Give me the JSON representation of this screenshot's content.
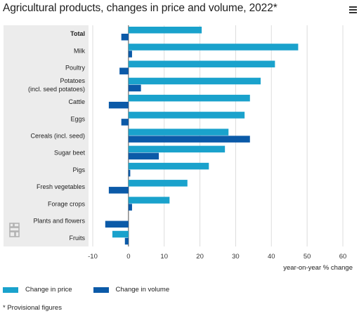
{
  "header": {
    "title": "Agricultural products, changes in price and volume, 2022*"
  },
  "menu": {
    "icon": "hamburger-menu-icon"
  },
  "logo": {
    "icon": "cbs-logo-icon"
  },
  "colors": {
    "price": "#1aa2cc",
    "volume": "#0b5aa8",
    "panel": "#ececec",
    "grid": "#dcdcdc"
  },
  "chart_data": {
    "type": "bar",
    "orientation": "horizontal",
    "title": "Agricultural products, changes in price and volume, 2022*",
    "categories": [
      "Total",
      "Milk",
      "Poultry",
      "Potatoes (incl. seed potatoes)",
      "Cattle",
      "Eggs",
      "Cereals (incl. seed)",
      "Sugar beet",
      "Pigs",
      "Fresh vegetables",
      "Forage crops",
      "Plants and flowers",
      "Fruits"
    ],
    "series": [
      {
        "name": "Change in price",
        "values": [
          20.5,
          47.5,
          41,
          37,
          34,
          32.5,
          28,
          27,
          22.5,
          16.5,
          11.5,
          0,
          -4.5
        ]
      },
      {
        "name": "Change in volume",
        "values": [
          -2,
          1,
          -2.5,
          3.5,
          -5.5,
          -2,
          34,
          8.5,
          0.5,
          -5.5,
          1,
          -6.5,
          -1
        ]
      }
    ],
    "x_ticks": [
      -10,
      0,
      10,
      20,
      30,
      40,
      50,
      60
    ],
    "xlim": [
      -10,
      60
    ],
    "xlabel": "year-on-year % change",
    "grid": true,
    "legend_position": "bottom-left",
    "footnote": "* Provisional figures"
  }
}
